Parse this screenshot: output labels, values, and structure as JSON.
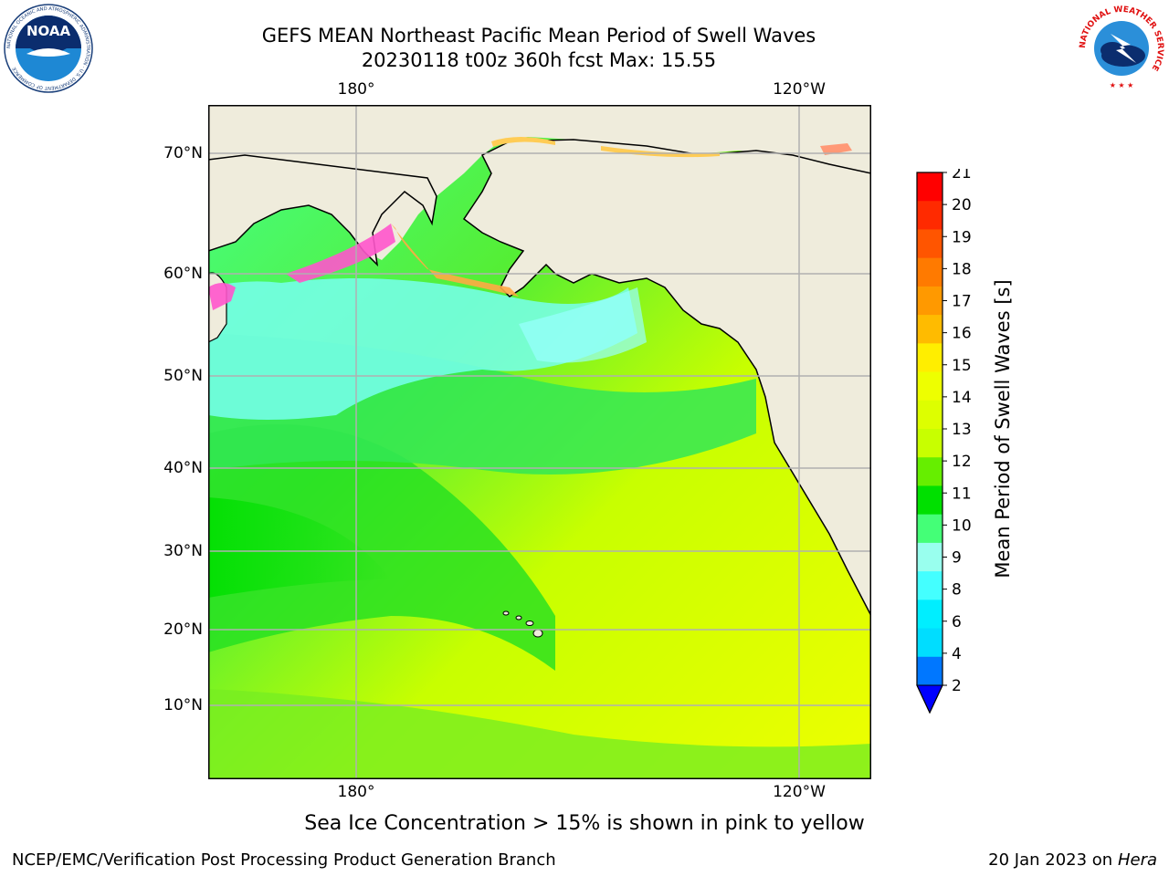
{
  "title_line1": "GEFS MEAN Northeast Pacific Mean Period of Swell Waves",
  "title_line2": "20230118 t00z 360h fcst   Max: 15.55",
  "map": {
    "lon_labels_top": [
      "180°",
      "120°W"
    ],
    "lon_labels_bottom": [
      "180°",
      "120°W"
    ],
    "lat_labels": [
      "70°N",
      "60°N",
      "50°N",
      "40°N",
      "30°N",
      "20°N",
      "10°N"
    ],
    "land_color": "#efecdc",
    "grid_color": "#b0b0b0"
  },
  "colorbar": {
    "label": "Mean Period of Swell Waves [s]",
    "ticks": [
      "21",
      "20",
      "19",
      "18",
      "17",
      "16",
      "15",
      "14",
      "13",
      "12",
      "11",
      "10",
      "9",
      "8",
      "6",
      "4",
      "2"
    ],
    "colors_top_to_bottom": [
      "#ff0000",
      "#ff2a00",
      "#ff5500",
      "#ff7a00",
      "#ff9900",
      "#ffbb00",
      "#ffee00",
      "#eeff00",
      "#ddff00",
      "#c8ff00",
      "#66ee00",
      "#00e000",
      "#44ff77",
      "#99ffee",
      "#44ffff",
      "#00eeff",
      "#00ddff",
      "#0077ff"
    ],
    "extend_color": "#0000ff"
  },
  "footnote": "Sea Ice Concentration > 15% is shown in pink to yellow",
  "credit": "NCEP/EMC/Verification Post Processing Product Generation Branch",
  "date_text": "20 Jan 2023 on ",
  "date_machine": "Hera",
  "logos": {
    "noaa_text": "NOAA",
    "noaa_ring_text": "NATIONAL OCEANIC AND ATMOSPHERIC ADMINISTRATION · U.S. DEPARTMENT OF COMMERCE",
    "nws_ring_text": "NATIONAL WEATHER SERVICE"
  }
}
